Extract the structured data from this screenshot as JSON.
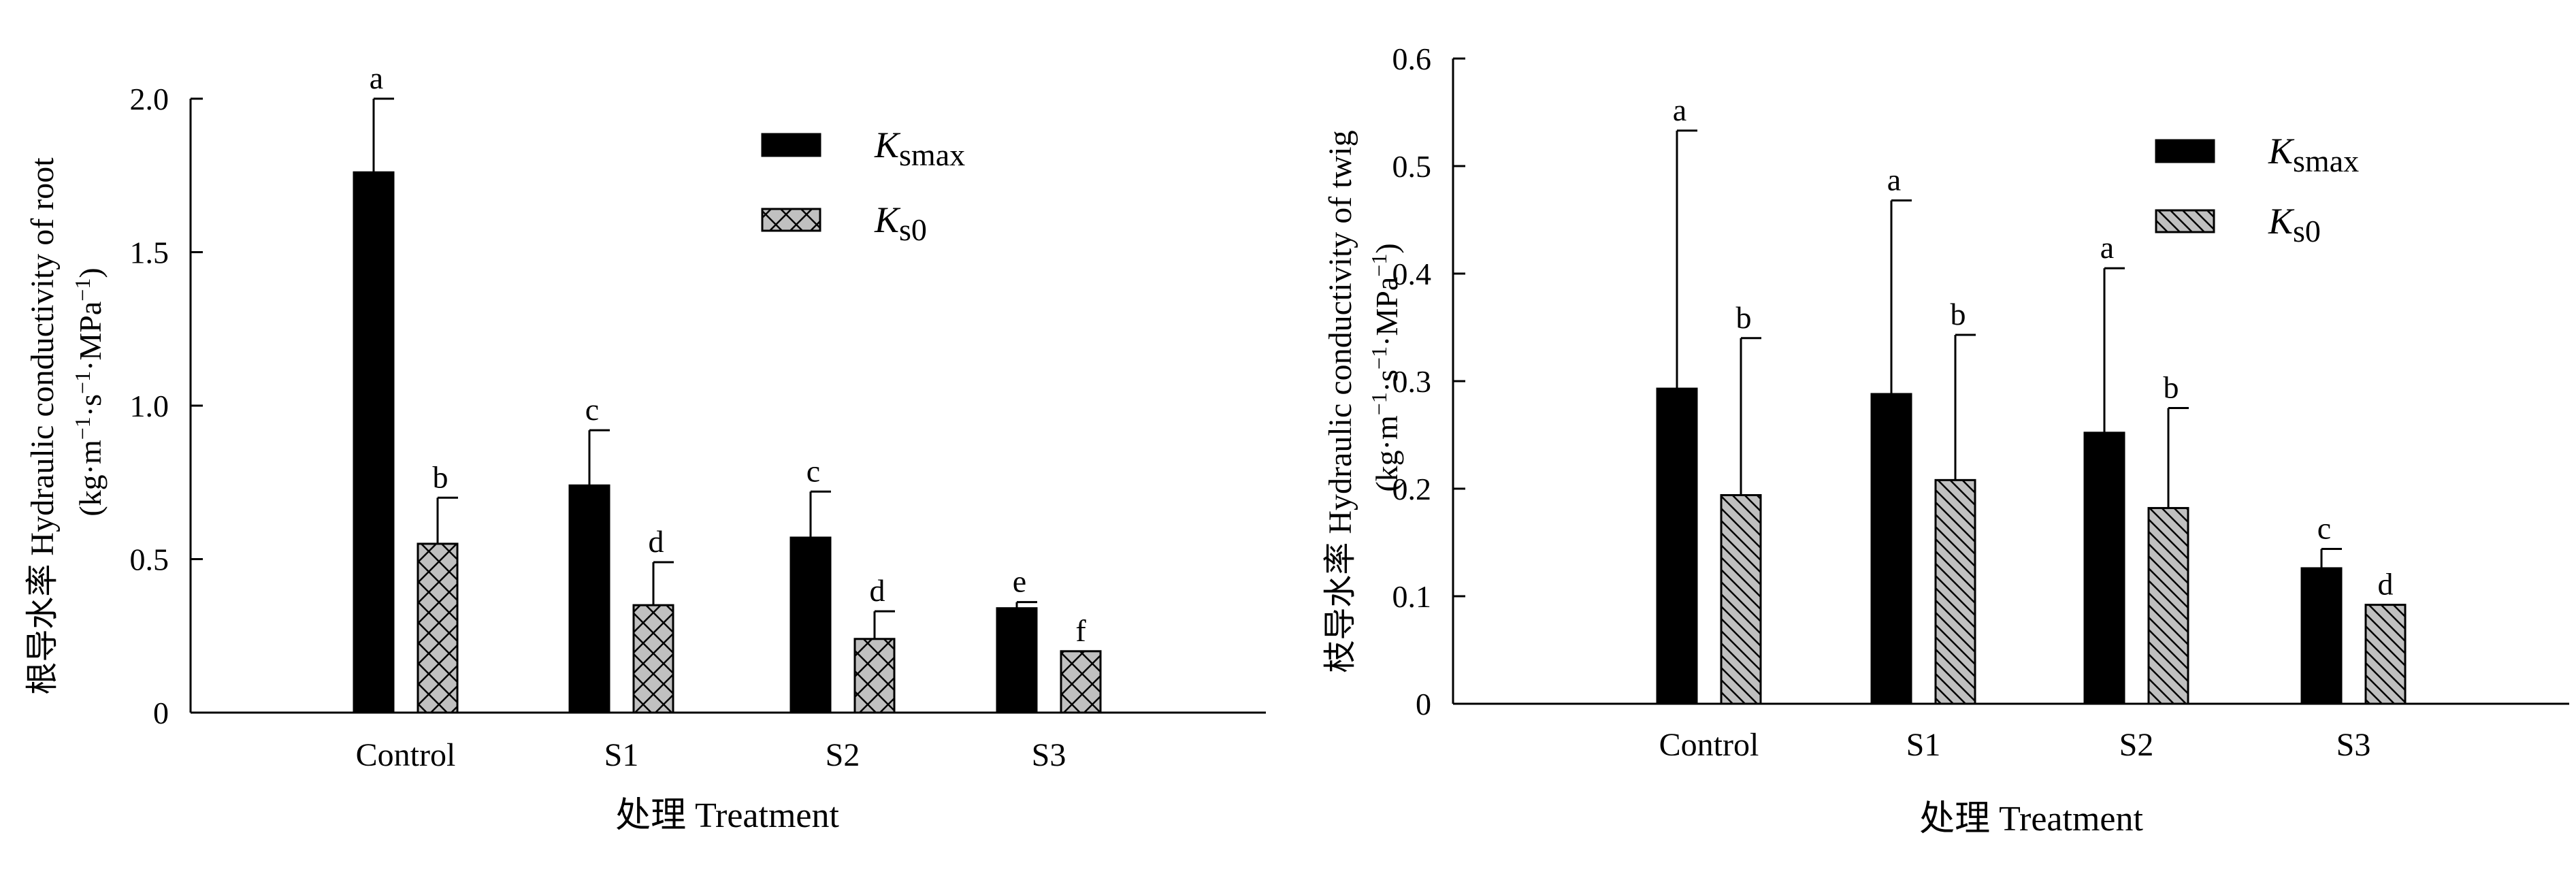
{
  "colors": {
    "ksmax_fill": "#000000",
    "ks0_fill": "#c0c0c0",
    "axis": "#000000",
    "background": "#ffffff"
  },
  "legend_labels": {
    "ksmax_main": "K",
    "ksmax_sub": "smax",
    "ks0_main": "K",
    "ks0_sub": "s0"
  },
  "chart_data": [
    {
      "type": "bar",
      "panel": "root",
      "title": "",
      "xlabel": "处理 Treatment",
      "ylabel": "根导水率 Hydraulic conductivity of root",
      "ylabel_units": {
        "open": "(kg·m",
        "sup1": "−1",
        "mid1": "·s",
        "sup2": "−1",
        "mid2": "·MPa",
        "sup3": "−1",
        "close": ")"
      },
      "ylim": [
        0,
        2.0
      ],
      "yticks": [
        0,
        0.5,
        1.0,
        1.5,
        2.0
      ],
      "ytick_labels": [
        "0",
        "0.5",
        "1.0",
        "1.5",
        "2.0"
      ],
      "grid": false,
      "legend_position": "top-right",
      "categories": [
        "Control",
        "S1",
        "S2",
        "S3"
      ],
      "series": [
        {
          "name": "Ksmax",
          "pattern": "solid-black",
          "values": [
            1.76,
            0.74,
            0.57,
            0.34
          ],
          "errors": [
            0.24,
            0.18,
            0.15,
            0.02
          ],
          "letters": [
            "a",
            "c",
            "c",
            "e"
          ]
        },
        {
          "name": "Ks0",
          "pattern": "crosshatch",
          "values": [
            0.55,
            0.35,
            0.24,
            0.2
          ],
          "errors": [
            0.15,
            0.14,
            0.09,
            0.0
          ],
          "letters": [
            "b",
            "d",
            "d",
            "f"
          ]
        }
      ]
    },
    {
      "type": "bar",
      "panel": "twig",
      "title": "",
      "xlabel": "处理 Treatment",
      "ylabel": "枝导水率 Hydraulic conductivity of twig",
      "ylabel_units": {
        "open": "(kg·m",
        "sup1": "−1",
        "mid1": "·s",
        "sup2": "−1",
        "mid2": "·MPa",
        "sup3": "−1",
        "close": ")"
      },
      "ylim": [
        0,
        0.6
      ],
      "yticks": [
        0,
        0.1,
        0.2,
        0.3,
        0.4,
        0.5,
        0.6
      ],
      "ytick_labels": [
        "0",
        "0.1",
        "0.2",
        "0.3",
        "0.4",
        "0.5",
        "0.6"
      ],
      "grid": false,
      "legend_position": "top-right",
      "categories": [
        "Control",
        "S1",
        "S2",
        "S3"
      ],
      "series": [
        {
          "name": "Ksmax",
          "pattern": "solid-black",
          "values": [
            0.293,
            0.288,
            0.252,
            0.126
          ],
          "errors": [
            0.24,
            0.18,
            0.153,
            0.018
          ],
          "letters": [
            "a",
            "a",
            "a",
            "c"
          ]
        },
        {
          "name": "Ks0",
          "pattern": "diagonal-hatch",
          "values": [
            0.194,
            0.208,
            0.182,
            0.092
          ],
          "errors": [
            0.146,
            0.135,
            0.093,
            0.0
          ],
          "letters": [
            "b",
            "b",
            "b",
            "d"
          ]
        }
      ]
    }
  ]
}
